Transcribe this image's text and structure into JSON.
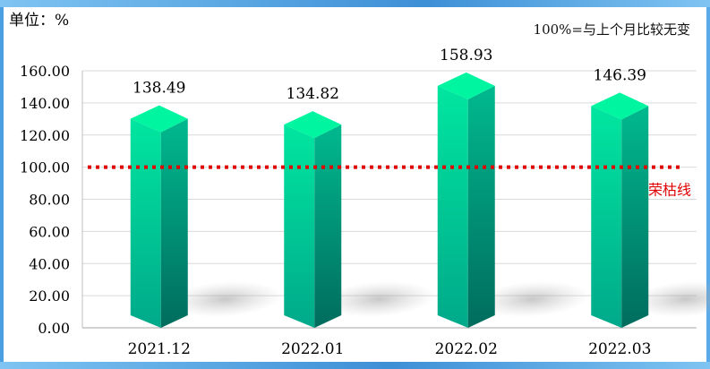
{
  "unit_label": "单位：%",
  "note": "100%=与上个月比较无变",
  "chart_data": {
    "type": "bar",
    "categories": [
      "2021.12",
      "2022.01",
      "2022.02",
      "2022.03"
    ],
    "values": [
      138.49,
      134.82,
      158.93,
      146.39
    ],
    "value_labels": [
      "138.49",
      "134.82",
      "158.93",
      "146.39"
    ],
    "y_ticks": [
      "0.00",
      "20.00",
      "40.00",
      "60.00",
      "80.00",
      "100.00",
      "120.00",
      "140.00",
      "160.00"
    ],
    "ylim": [
      0,
      160
    ],
    "reference_line": {
      "value": 100,
      "label": "荣枯线",
      "color": "#e00000"
    },
    "bar_color_top": "#00f5a0",
    "bar_color_front": "#00c997",
    "bar_color_side": "#008a74",
    "grid": true
  }
}
